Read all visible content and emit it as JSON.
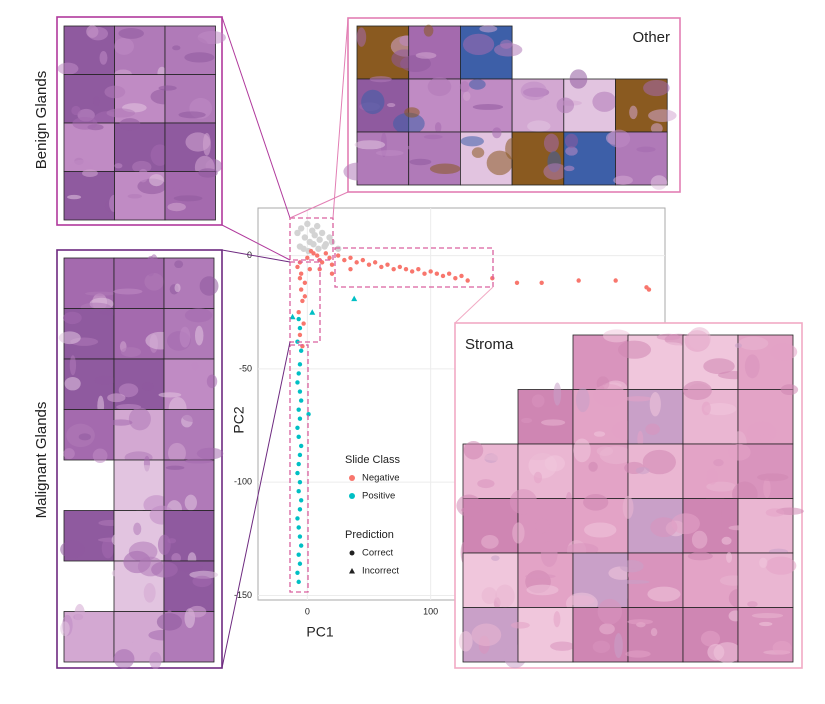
{
  "chart_data": {
    "type": "scatter",
    "xlabel": "PC1",
    "ylabel": "PC2",
    "xlim": [
      -40,
      290
    ],
    "ylim": [
      -152,
      21
    ],
    "xticks": [
      0,
      100
    ],
    "yticks": [
      0,
      -50,
      -100,
      -150
    ],
    "grid": true,
    "legend": {
      "slide_class_title": "Slide Class",
      "prediction_title": "Prediction",
      "prediction": [
        {
          "label": "Correct",
          "shape": "circle"
        },
        {
          "label": "Incorrect",
          "shape": "triangle"
        }
      ]
    },
    "series": [
      {
        "color": "#d3d3d3",
        "x": [
          -8,
          -5,
          -2,
          0,
          2,
          4,
          6,
          8,
          10,
          12,
          15,
          18,
          -6,
          -3,
          1,
          5,
          9,
          14,
          20,
          25
        ],
        "values": [
          10,
          12,
          8,
          14,
          6,
          11,
          9,
          13,
          7,
          10,
          5,
          8,
          4,
          3,
          2,
          5,
          3,
          4,
          6,
          3
        ]
      },
      {
        "name": "Negative",
        "color": "#f8766d",
        "x": [
          -8,
          -6,
          -5,
          -4,
          -7,
          -3,
          -6,
          -5,
          -2,
          0,
          3,
          5,
          8,
          10,
          12,
          15,
          18,
          20,
          25,
          30,
          35,
          40,
          45,
          50,
          55,
          60,
          65,
          70,
          75,
          80,
          85,
          90,
          95,
          100,
          105,
          110,
          115,
          120,
          125,
          130,
          150,
          170,
          190,
          220,
          250,
          275,
          277,
          10,
          20,
          35,
          -6,
          -4,
          -2,
          2
        ],
        "values": [
          -5,
          -10,
          -15,
          -20,
          -25,
          -30,
          -3,
          -8,
          -12,
          -1,
          2,
          1,
          0,
          -2,
          -3,
          1,
          -1,
          -4,
          0,
          -2,
          -1,
          -3,
          -2,
          -4,
          -3,
          -5,
          -4,
          -6,
          -5,
          -6,
          -7,
          -6,
          -8,
          -7,
          -8,
          -9,
          -8,
          -10,
          -9,
          -11,
          -10,
          -12,
          -12,
          -11,
          -11,
          -14,
          -15,
          -6,
          -8,
          -6,
          -35,
          -40,
          -18,
          -6
        ]
      },
      {
        "name": "Positive",
        "color": "#00bfc4",
        "x": [
          -7,
          -6,
          -8,
          -5,
          -6,
          -7,
          -8,
          -6,
          -5,
          -7,
          -6,
          -8,
          -7,
          -5,
          -6,
          -7,
          -8,
          -6,
          -7,
          -5,
          -6,
          -8,
          -7,
          -6,
          -5,
          -7,
          -6,
          -8,
          -7,
          1,
          -12,
          4,
          38
        ],
        "values": [
          -28,
          -32,
          -38,
          -42,
          -48,
          -52,
          -56,
          -60,
          -64,
          -68,
          -72,
          -76,
          -80,
          -84,
          -88,
          -92,
          -96,
          -100,
          -104,
          -108,
          -112,
          -116,
          -120,
          -124,
          -128,
          -132,
          -136,
          -140,
          -144,
          -70,
          -27,
          -25,
          -19
        ],
        "shapes": [
          "circle",
          "circle",
          "circle",
          "circle",
          "circle",
          "circle",
          "circle",
          "circle",
          "circle",
          "circle",
          "circle",
          "circle",
          "circle",
          "circle",
          "circle",
          "circle",
          "circle",
          "circle",
          "circle",
          "circle",
          "circle",
          "circle",
          "circle",
          "circle",
          "circle",
          "circle",
          "circle",
          "circle",
          "circle",
          "circle",
          "triangle",
          "triangle",
          "triangle"
        ]
      }
    ]
  },
  "panels": [
    {
      "label": "Benign Glands",
      "color": "#b0399c"
    },
    {
      "label": "Other",
      "color": "#e27fb4"
    },
    {
      "label": "Malignant Glands",
      "color": "#6e2a80"
    },
    {
      "label": "Stroma",
      "color": "#f2aac4"
    }
  ]
}
